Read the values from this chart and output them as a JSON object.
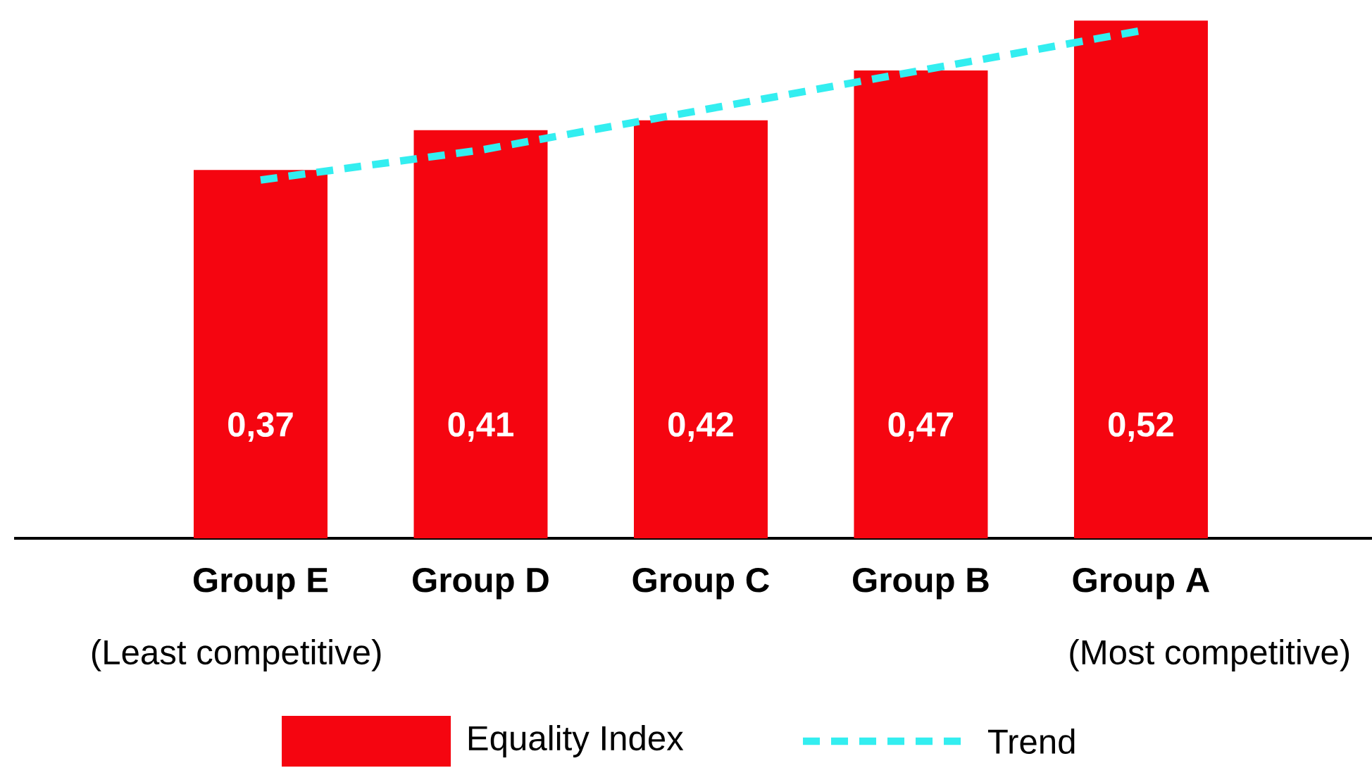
{
  "chart_data": {
    "type": "bar",
    "categories": [
      "Group E",
      "Group D",
      "Group C",
      "Group B",
      "Group A"
    ],
    "series": [
      {
        "name": "Equality Index",
        "color": "#f50510",
        "values": [
          0.37,
          0.41,
          0.42,
          0.47,
          0.52
        ],
        "value_labels": [
          "0,37",
          "0,41",
          "0,42",
          "0,47",
          "0,52"
        ]
      },
      {
        "name": "Trend",
        "type": "line",
        "color": "#33eef0",
        "line_style": "dashed",
        "values": [
          0.36,
          0.39,
          0.43,
          0.47,
          0.51
        ]
      }
    ],
    "tick_labels": "x",
    "grid": false,
    "legend": "bottom",
    "annotations": [
      "(Least competitive)",
      "(Most competitive)"
    ]
  }
}
